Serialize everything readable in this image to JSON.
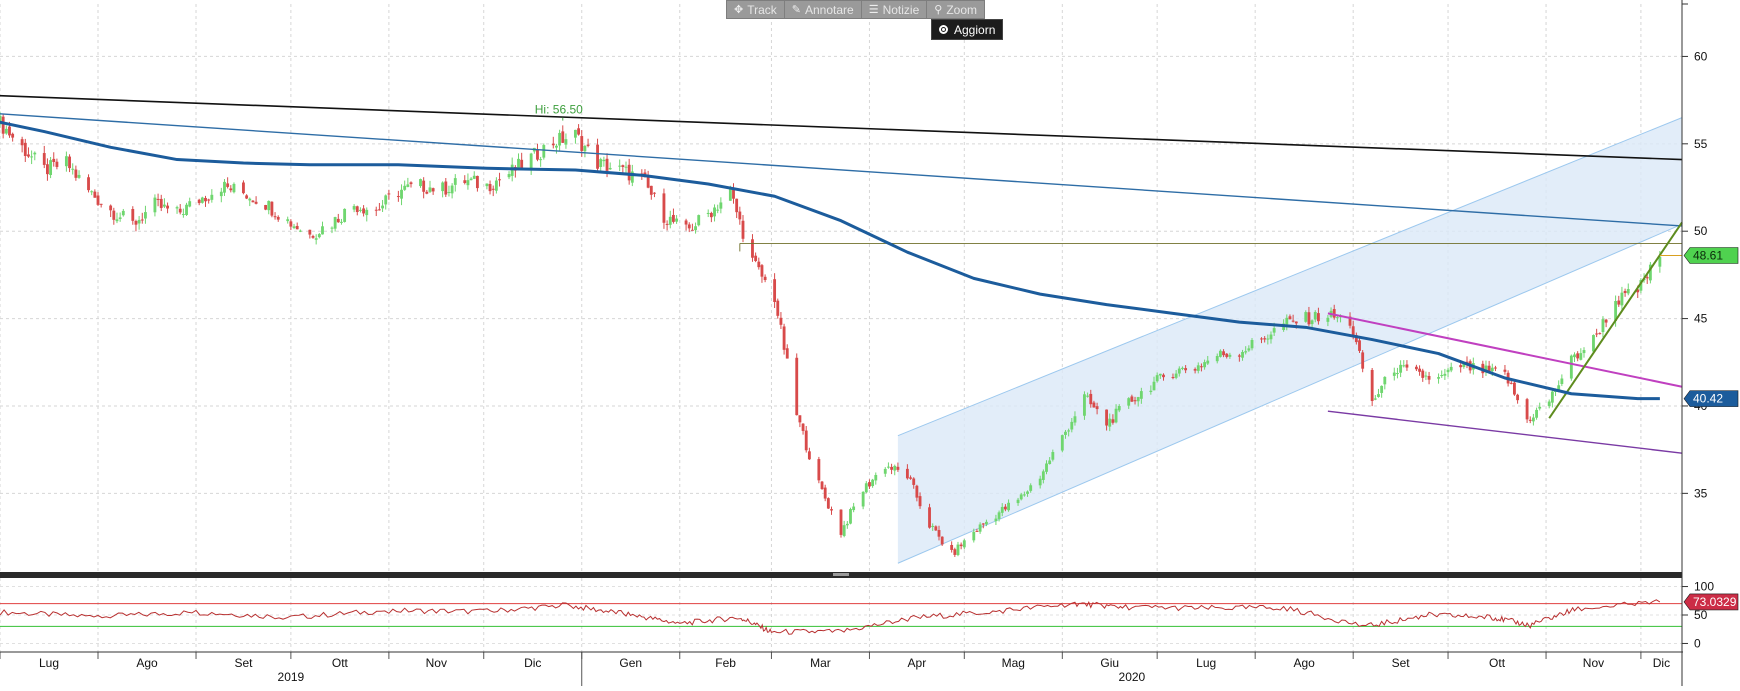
{
  "toolbar": {
    "track_label": "Track",
    "annotate_label": "Annotare",
    "news_label": "Notizie",
    "zoom_label": "Zoom",
    "refresh_label": "Aggiorn"
  },
  "colors": {
    "up": "#6fd66f",
    "down": "#d84a4a",
    "moving_average": "#1c5c9c",
    "rsi_line": "#b83030",
    "rsi_upper": "#e04040",
    "rsi_lower": "#34c034",
    "channel_fill": "#dbe9f7",
    "channel_line": "#9cc8ee",
    "long_trendline": "#111111",
    "trendline_blue": "#2e6da6",
    "trendline_magenta": "#c040c0",
    "trendline_purple": "#7a3aa4",
    "trendline_green": "#5e8c1e",
    "resistance_line": "#6f6f2a",
    "price_label_bg": "#4fd24f",
    "ma_label_bg": "#1c5c9c",
    "rsi_label_bg": "#cc2d46"
  },
  "chart_data": {
    "type": "candlestick",
    "x_start": "2019-07-01",
    "x_end": "2020-12-14",
    "price_ylim": [
      30.5,
      63
    ],
    "rsi_ylim": [
      -15,
      115
    ],
    "price_ticks": [
      "60",
      "55",
      "50",
      "45",
      "40",
      "35"
    ],
    "rsi_ticks": [
      "100",
      "50",
      "0"
    ],
    "month_labels": [
      "Lug",
      "Ago",
      "Set",
      "Ott",
      "Nov",
      "Dic",
      "Gen",
      "Feb",
      "Mar",
      "Apr",
      "Mag",
      "Giu",
      "Lug",
      "Ago",
      "Set",
      "Ott",
      "Nov",
      "Dic"
    ],
    "year_labels": [
      "2019",
      "2020"
    ],
    "high_annotation": "Hi: 56.50",
    "last_price_label": "48.61",
    "moving_average_label": "40.42",
    "rsi_label": "73.0329",
    "rsi_upper": 70,
    "rsi_lower": 30,
    "price_path": [
      [
        "2019-07-01",
        56.2
      ],
      [
        "2019-07-08",
        54.8
      ],
      [
        "2019-07-15",
        53.5
      ],
      [
        "2019-07-22",
        53.9
      ],
      [
        "2019-07-29",
        52.3
      ],
      [
        "2019-08-05",
        51.2
      ],
      [
        "2019-08-12",
        50.4
      ],
      [
        "2019-08-19",
        51.5
      ],
      [
        "2019-08-26",
        51.0
      ],
      [
        "2019-09-02",
        51.8
      ],
      [
        "2019-09-09",
        52.6
      ],
      [
        "2019-09-16",
        52.2
      ],
      [
        "2019-09-23",
        51.6
      ],
      [
        "2019-09-30",
        50.6
      ],
      [
        "2019-10-07",
        49.8
      ],
      [
        "2019-10-14",
        50.5
      ],
      [
        "2019-10-21",
        51.5
      ],
      [
        "2019-10-28",
        51.2
      ],
      [
        "2019-11-04",
        52.3
      ],
      [
        "2019-11-11",
        52.6
      ],
      [
        "2019-11-18",
        52.4
      ],
      [
        "2019-11-25",
        52.9
      ],
      [
        "2019-12-02",
        52.6
      ],
      [
        "2019-12-09",
        53.3
      ],
      [
        "2019-12-16",
        54.2
      ],
      [
        "2019-12-23",
        55.1
      ],
      [
        "2019-12-30",
        55.5
      ],
      [
        "2020-01-06",
        53.9
      ],
      [
        "2020-01-13",
        53.5
      ],
      [
        "2020-01-20",
        53.0
      ],
      [
        "2020-01-27",
        50.9
      ],
      [
        "2020-02-03",
        50.0
      ],
      [
        "2020-02-10",
        51.0
      ],
      [
        "2020-02-17",
        52.2
      ],
      [
        "2020-02-24",
        48.3
      ],
      [
        "2020-03-02",
        46.2
      ],
      [
        "2020-03-09",
        39.5
      ],
      [
        "2020-03-16",
        35.5
      ],
      [
        "2020-03-23",
        32.8
      ],
      [
        "2020-03-30",
        35.2
      ],
      [
        "2020-04-06",
        36.6
      ],
      [
        "2020-04-13",
        36.0
      ],
      [
        "2020-04-20",
        33.2
      ],
      [
        "2020-04-27",
        31.5
      ],
      [
        "2020-05-04",
        32.8
      ],
      [
        "2020-05-11",
        33.8
      ],
      [
        "2020-05-18",
        34.6
      ],
      [
        "2020-05-25",
        36.0
      ],
      [
        "2020-06-01",
        38.2
      ],
      [
        "2020-06-08",
        40.5
      ],
      [
        "2020-06-15",
        39.0
      ],
      [
        "2020-06-22",
        40.2
      ],
      [
        "2020-06-29",
        41.2
      ],
      [
        "2020-07-06",
        42.0
      ],
      [
        "2020-07-13",
        42.2
      ],
      [
        "2020-07-20",
        42.9
      ],
      [
        "2020-07-27",
        43.1
      ],
      [
        "2020-08-03",
        43.8
      ],
      [
        "2020-08-10",
        44.7
      ],
      [
        "2020-08-17",
        45.0
      ],
      [
        "2020-08-24",
        45.2
      ],
      [
        "2020-08-31",
        44.8
      ],
      [
        "2020-09-07",
        40.2
      ],
      [
        "2020-09-14",
        42.2
      ],
      [
        "2020-09-21",
        41.8
      ],
      [
        "2020-09-28",
        41.5
      ],
      [
        "2020-10-05",
        42.3
      ],
      [
        "2020-10-12",
        42.0
      ],
      [
        "2020-10-19",
        41.8
      ],
      [
        "2020-10-26",
        39.2
      ],
      [
        "2020-11-02",
        40.3
      ],
      [
        "2020-11-09",
        42.6
      ],
      [
        "2020-11-16",
        43.8
      ],
      [
        "2020-11-23",
        46.0
      ],
      [
        "2020-11-30",
        46.6
      ],
      [
        "2020-12-07",
        48.61
      ]
    ],
    "moving_average": [
      [
        "2019-06-24",
        56.5
      ],
      [
        "2019-07-15",
        55.7
      ],
      [
        "2019-08-05",
        54.8
      ],
      [
        "2019-08-26",
        54.1
      ],
      [
        "2019-09-16",
        53.9
      ],
      [
        "2019-10-07",
        53.8
      ],
      [
        "2019-11-04",
        53.8
      ],
      [
        "2019-12-02",
        53.6
      ],
      [
        "2019-12-30",
        53.5
      ],
      [
        "2020-01-20",
        53.2
      ],
      [
        "2020-02-10",
        52.7
      ],
      [
        "2020-03-02",
        52.0
      ],
      [
        "2020-03-23",
        50.6
      ],
      [
        "2020-04-13",
        48.8
      ],
      [
        "2020-05-04",
        47.3
      ],
      [
        "2020-05-25",
        46.4
      ],
      [
        "2020-06-15",
        45.8
      ],
      [
        "2020-07-06",
        45.3
      ],
      [
        "2020-07-27",
        44.8
      ],
      [
        "2020-08-17",
        44.5
      ],
      [
        "2020-09-07",
        43.8
      ],
      [
        "2020-09-28",
        43.0
      ],
      [
        "2020-10-19",
        41.6
      ],
      [
        "2020-11-09",
        40.7
      ],
      [
        "2020-11-30",
        40.42
      ],
      [
        "2020-12-07",
        40.42
      ]
    ],
    "rsi": [
      [
        "2019-07-01",
        55
      ],
      [
        "2019-08-01",
        47
      ],
      [
        "2019-09-01",
        55
      ],
      [
        "2019-10-01",
        46
      ],
      [
        "2019-11-01",
        58
      ],
      [
        "2019-12-01",
        56
      ],
      [
        "2019-12-27",
        67
      ],
      [
        "2020-01-15",
        52
      ],
      [
        "2020-02-01",
        35
      ],
      [
        "2020-02-20",
        46
      ],
      [
        "2020-03-01",
        20
      ],
      [
        "2020-03-23",
        21
      ],
      [
        "2020-04-15",
        45
      ],
      [
        "2020-05-10",
        56
      ],
      [
        "2020-06-05",
        70
      ],
      [
        "2020-06-20",
        64
      ],
      [
        "2020-07-15",
        62
      ],
      [
        "2020-08-10",
        63
      ],
      [
        "2020-09-05",
        30
      ],
      [
        "2020-09-25",
        50
      ],
      [
        "2020-10-15",
        46
      ],
      [
        "2020-10-27",
        32
      ],
      [
        "2020-11-10",
        60
      ],
      [
        "2020-12-07",
        73.03
      ]
    ],
    "lines": {
      "long_trendline": [
        [
          "2019-06-24",
          57.8
        ],
        [
          "2020-12-14",
          54.1
        ]
      ],
      "descending_blue": [
        [
          "2019-06-24",
          56.8
        ],
        [
          "2020-12-14",
          50.3
        ]
      ],
      "channel_lower": [
        [
          "2020-04-10",
          31.0
        ],
        [
          "2020-12-14",
          50.4
        ]
      ],
      "channel_upper": [
        [
          "2020-04-10",
          38.3
        ],
        [
          "2020-12-14",
          56.5
        ]
      ],
      "resistance": [
        [
          "2020-02-20",
          49.3
        ],
        [
          "2020-12-14",
          49.3
        ]
      ],
      "magenta": [
        [
          "2020-08-24",
          45.3
        ],
        [
          "2020-12-14",
          41.1
        ]
      ],
      "purple": [
        [
          "2020-08-24",
          39.7
        ],
        [
          "2020-12-14",
          37.3
        ]
      ],
      "green": [
        [
          "2020-11-02",
          39.3
        ],
        [
          "2020-12-14",
          50.5
        ]
      ]
    }
  }
}
